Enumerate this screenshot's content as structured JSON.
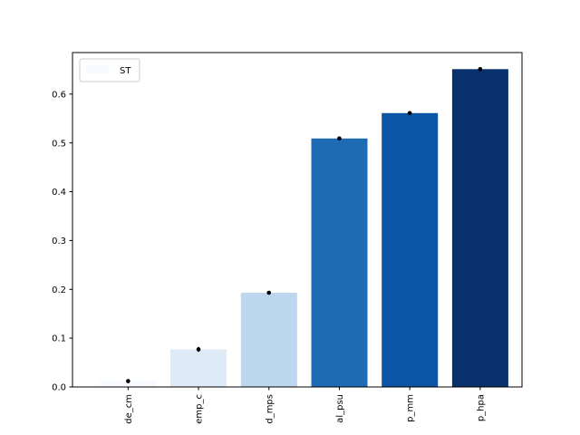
{
  "chart_data": {
    "type": "bar",
    "categories": [
      "de_cm",
      "emp_c",
      "d_mps",
      "al_psu",
      "p_mm",
      "p_hpa"
    ],
    "series": [
      {
        "name": "ST",
        "values": [
          0.012,
          0.077,
          0.193,
          0.509,
          0.561,
          0.651
        ],
        "errors": [
          0.004,
          0.005,
          0.002,
          0.004,
          0.004,
          0.003
        ]
      }
    ],
    "bar_colors": [
      "#f7fbff",
      "#deebf7",
      "#bdd7ee",
      "#1f6bb4",
      "#0b55a4",
      "#08306b"
    ],
    "error_bar_color": "#000000",
    "ylim": [
      0,
      0.685
    ],
    "yticks": [
      "0.0",
      "0.1",
      "0.2",
      "0.3",
      "0.4",
      "0.5",
      "0.6"
    ],
    "legend": {
      "label": "ST",
      "position": "upper-left"
    },
    "xlabel": "",
    "ylabel": "",
    "title": "",
    "grid": false
  }
}
